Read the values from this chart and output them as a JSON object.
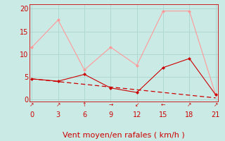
{
  "xlabel": "Vent moyen/en rafales ( km/h )",
  "bg_color": "#caeae5",
  "grid_color": "#b0d8d3",
  "x_ticks": [
    0,
    3,
    6,
    9,
    12,
    15,
    18,
    21
  ],
  "ylim": [
    -0.5,
    21
  ],
  "xlim": [
    -0.3,
    21.3
  ],
  "yticks": [
    0,
    5,
    10,
    15,
    20
  ],
  "wind_x": [
    0,
    3,
    6,
    9,
    12,
    15,
    18,
    21
  ],
  "wind_y": [
    4.5,
    4.0,
    5.5,
    2.5,
    1.5,
    7.0,
    9.0,
    1.0
  ],
  "gust_x": [
    0,
    3,
    6,
    9,
    12,
    15,
    18,
    21
  ],
  "gust_y": [
    11.5,
    17.5,
    6.5,
    11.5,
    7.5,
    19.5,
    19.5,
    1.0
  ],
  "trend_x": [
    0,
    21
  ],
  "trend_y": [
    4.5,
    0.3
  ],
  "wind_color": "#cc0000",
  "gust_color": "#ff9999",
  "trend_color": "#cc0000",
  "arrows": [
    "↗",
    "↗",
    "↑",
    "→",
    "↙",
    "←",
    "↗",
    "↗"
  ],
  "xlabel_color": "#cc0000",
  "xlabel_fontsize": 8,
  "tick_color": "#cc0000",
  "tick_fontsize": 7,
  "spine_color": "#cc0000"
}
